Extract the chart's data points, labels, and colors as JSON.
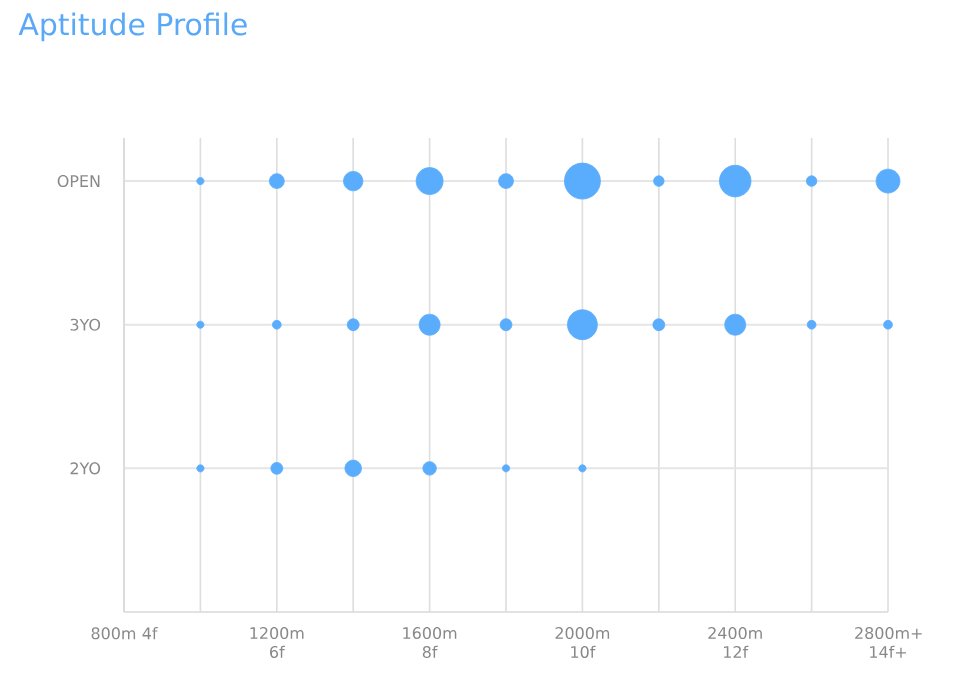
{
  "chart_data": {
    "type": "bubble",
    "title": "Aptitude Profile",
    "categories": [
      "800m 4f",
      null,
      "1200m 6f",
      null,
      "1600m 8f",
      null,
      "2000m 10f",
      null,
      "2400m 12f",
      null,
      "2800m+ 14f+"
    ],
    "ylim": [
      1,
      4.3
    ],
    "yticks": [
      {
        "value": 2,
        "label": "2YO"
      },
      {
        "value": 3,
        "label": "3YO"
      },
      {
        "value": 4,
        "label": "OPEN"
      }
    ],
    "grid": true,
    "marker": "circle",
    "series": [
      {
        "color": "#5aacfc",
        "values": [
          null,
          4,
          4,
          4,
          4,
          4,
          4,
          4,
          4,
          4,
          4
        ],
        "sizes": [
          null,
          0.04,
          0.17,
          0.29,
          0.56,
          0.17,
          1,
          0.085,
          0.77,
          0.085,
          0.44
        ]
      },
      {
        "color": "#5aacfc",
        "values": [
          null,
          3,
          3,
          3,
          3,
          3,
          3,
          3,
          3,
          3,
          3
        ],
        "sizes": [
          null,
          0.04,
          0.06,
          0.11,
          0.34,
          0.11,
          0.69,
          0.11,
          0.34,
          0.06,
          0.06
        ]
      },
      {
        "color": "#5aacfc",
        "values": [
          null,
          2,
          2,
          2,
          2,
          2,
          2,
          null,
          null,
          null,
          null
        ],
        "sizes": [
          null,
          0.04,
          0.11,
          0.21,
          0.14,
          0.04,
          0.04,
          null,
          null,
          null,
          null
        ]
      }
    ]
  }
}
